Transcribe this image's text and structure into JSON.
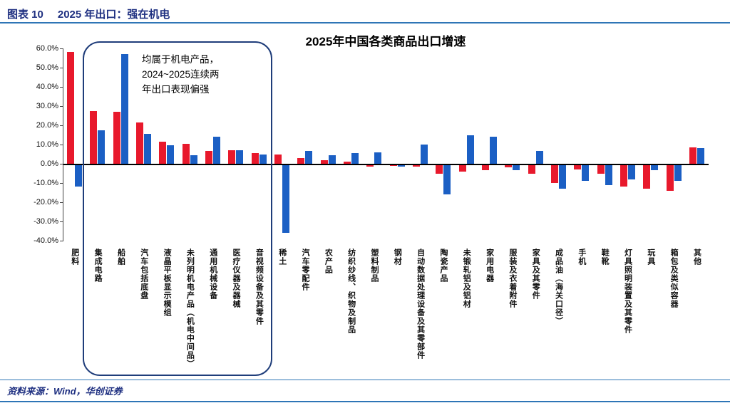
{
  "page": {
    "header_label": "图表 10",
    "header_title": "2025 年出口：强在机电",
    "source": "资料来源：Wind，华创证券"
  },
  "theme": {
    "header_color": "#1f3081",
    "rule_color": "#2e75b6",
    "box_border": "#1f3d7a"
  },
  "chart_data": {
    "type": "bar",
    "title": "2025年中国各类商品出口增速",
    "annotation": "均属于机电产品，2024~2025连续两年出口表现偏强",
    "annotation_lines": [
      "均属于机电产品，",
      "2024~2025连续两",
      "年出口表现偏强"
    ],
    "xlabel": "",
    "ylabel": "",
    "ylim": [
      -40,
      60
    ],
    "ytick_step": 10,
    "ytick_labels": [
      "60.0%",
      "50.0%",
      "40.0%",
      "30.0%",
      "20.0%",
      "10.0%",
      "0.0%",
      "-10.0%",
      "-20.0%",
      "-30.0%",
      "-40.0%"
    ],
    "grid": false,
    "legend": "none",
    "highlight_box_range": [
      "集成电路",
      "音视频设备及其零件"
    ],
    "categories": [
      "肥料",
      "集成电路",
      "船舶",
      "汽车包括底盘",
      "液晶平板显示模组",
      "未列明机电产品（机电中间品）",
      "通用机械设备",
      "医疗仪器及器械",
      "音视频设备及其零件",
      "稀土",
      "汽车零配件",
      "农产品",
      "纺织纱线、织物及制品",
      "塑料制品",
      "钢材",
      "自动数据处理设备及其零部件",
      "陶瓷产品",
      "未锻轧铝及铝材",
      "家用电器",
      "服装及衣着附件",
      "家具及其零件",
      "成品油（海关口径）",
      "手机",
      "鞋靴",
      "灯具照明装置及其零件",
      "玩具",
      "箱包及类似容器",
      "其他"
    ],
    "series": [
      {
        "name": "red",
        "color": "#e8192c",
        "values": [
          58,
          27.5,
          27,
          21.5,
          11.5,
          10.5,
          6.5,
          7,
          5.5,
          5,
          3,
          2,
          1,
          -1.5,
          -1,
          -1.5,
          -5,
          -4,
          -3.5,
          -2,
          -5,
          -10,
          -3,
          -5,
          -12,
          -13,
          -14,
          8.5
        ]
      },
      {
        "name": "blue",
        "color": "#1b5fc4",
        "values": [
          -12,
          17.5,
          57,
          15.5,
          9.5,
          4.5,
          14,
          7,
          5,
          -36,
          6.5,
          4.5,
          5.5,
          6,
          -1.5,
          10,
          -16,
          15,
          14,
          -3.5,
          6.5,
          -13,
          -9,
          -11,
          -8,
          -3.5,
          -9,
          8
        ]
      }
    ]
  }
}
